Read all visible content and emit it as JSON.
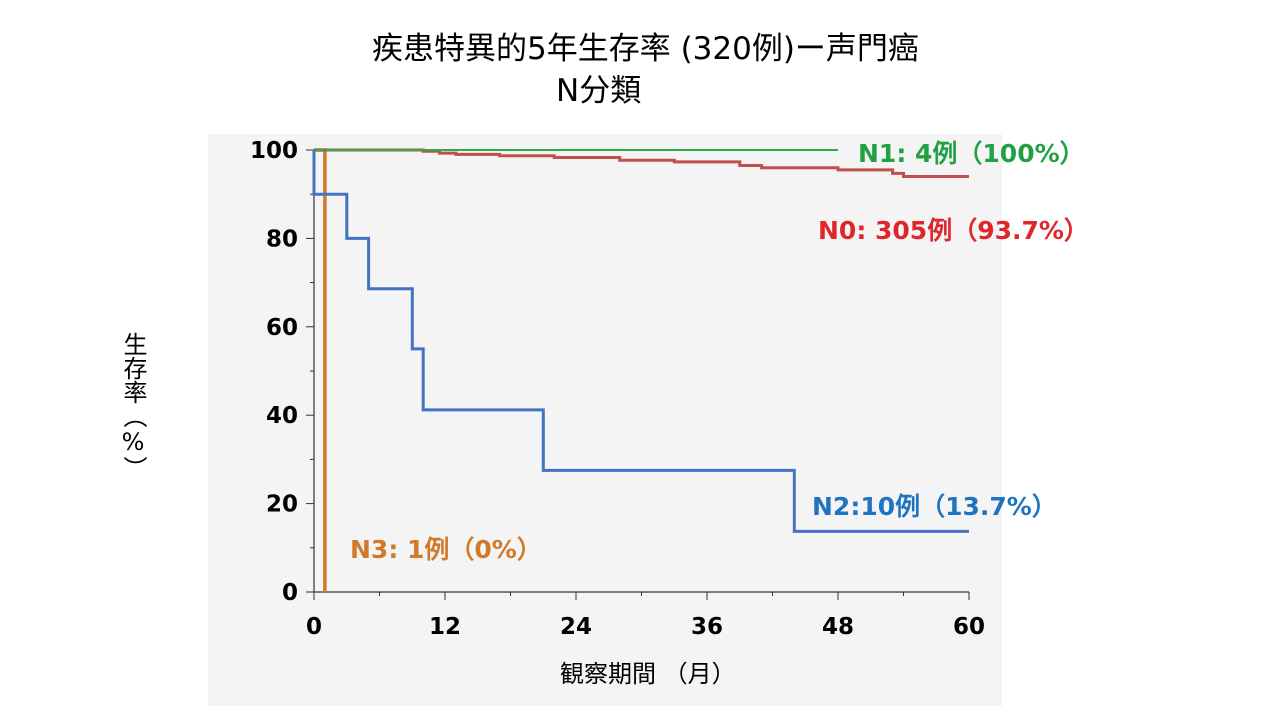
{
  "title": {
    "line1": "疾患特異的5年生存率 (320例)ー声門癌",
    "line2": "N分類"
  },
  "chart_data": {
    "type": "line",
    "step": true,
    "xlabel": "観察期間 （月）",
    "ylabel": "生存率（%）",
    "xlim": [
      0,
      60
    ],
    "ylim": [
      0,
      100
    ],
    "x_ticks": [
      "0",
      "12",
      "24",
      "36",
      "48",
      "60"
    ],
    "y_ticks": [
      "0",
      "20",
      "40",
      "60",
      "80",
      "100"
    ],
    "grid": false,
    "series": [
      {
        "name": "N1",
        "label": "N1: 4例（100%）",
        "color": "#2eaa4a",
        "points": [
          [
            0,
            100
          ],
          [
            48,
            100
          ]
        ]
      },
      {
        "name": "N0",
        "label": "N0: 305例（93.7%）",
        "color": "#c0504d",
        "points": [
          [
            0,
            100
          ],
          [
            10,
            100
          ],
          [
            10,
            99.7
          ],
          [
            11.5,
            99.7
          ],
          [
            11.5,
            99.3
          ],
          [
            13,
            99.3
          ],
          [
            13,
            99
          ],
          [
            17,
            99
          ],
          [
            17,
            98.7
          ],
          [
            22,
            98.7
          ],
          [
            22,
            98.3
          ],
          [
            28,
            98.3
          ],
          [
            28,
            97.7
          ],
          [
            33,
            97.7
          ],
          [
            33,
            97.3
          ],
          [
            39,
            97.3
          ],
          [
            39,
            96.5
          ],
          [
            41,
            96.5
          ],
          [
            41,
            96
          ],
          [
            48,
            96
          ],
          [
            48,
            95.5
          ],
          [
            53,
            95.5
          ],
          [
            53,
            94.7
          ],
          [
            54,
            94.7
          ],
          [
            54,
            94
          ],
          [
            60,
            94
          ]
        ]
      },
      {
        "name": "N2",
        "label": "N2:10例（13.7%）",
        "color": "#4472c4",
        "points": [
          [
            0,
            100
          ],
          [
            0,
            90
          ],
          [
            3,
            90
          ],
          [
            3,
            80
          ],
          [
            5,
            80
          ],
          [
            5,
            68.6
          ],
          [
            9,
            68.6
          ],
          [
            9,
            55
          ],
          [
            10,
            55
          ],
          [
            10,
            41.2
          ],
          [
            21,
            41.2
          ],
          [
            21,
            27.5
          ],
          [
            44,
            27.5
          ],
          [
            44,
            13.7
          ],
          [
            60,
            13.7
          ]
        ]
      },
      {
        "name": "N3",
        "label": "N3: 1例（0%）",
        "color": "#d07a2a",
        "points": [
          [
            0,
            100
          ],
          [
            1,
            100
          ],
          [
            1,
            0
          ]
        ]
      }
    ]
  }
}
